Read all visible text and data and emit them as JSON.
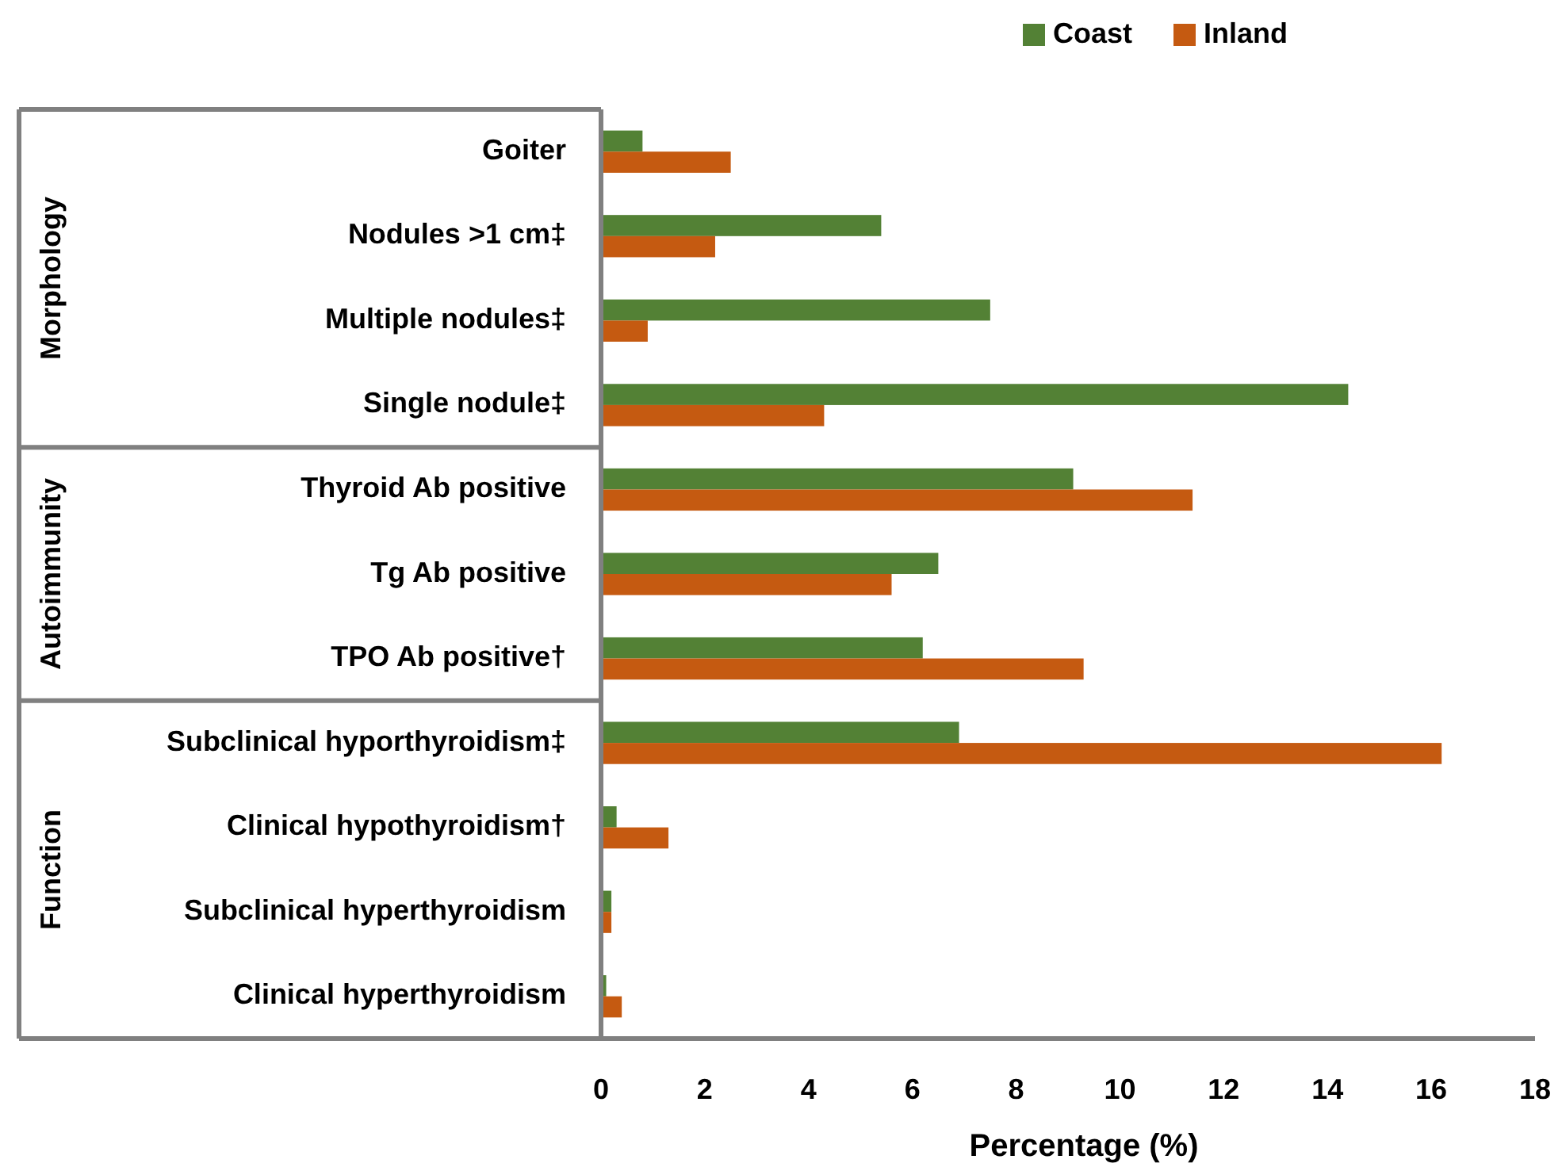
{
  "chart_data": {
    "type": "bar",
    "orientation": "horizontal",
    "xlabel": "Percentage (%)",
    "categories": [
      "Goiter",
      "Nodules >1 cm‡",
      "Multiple nodules‡",
      "Single nodule‡",
      "Thyroid Ab positive",
      "Tg Ab positive",
      "TPO Ab positive†",
      "Subclinical hyporthyroidism‡",
      "Clinical hypothyroidism†",
      "Subclinical hyperthyroidism",
      "Clinical hyperthyroidism"
    ],
    "series": [
      {
        "name": "Coast",
        "color": "#538135",
        "values": [
          0.8,
          5.4,
          7.5,
          14.4,
          9.1,
          6.5,
          6.2,
          6.9,
          0.3,
          0.2,
          0.1
        ]
      },
      {
        "name": "Inland",
        "color": "#c55a11",
        "values": [
          2.5,
          2.2,
          0.9,
          4.3,
          11.4,
          5.6,
          9.3,
          16.2,
          1.3,
          0.2,
          0.4
        ]
      }
    ],
    "xlim": [
      0,
      18
    ],
    "xticks": [
      0,
      2,
      4,
      6,
      8,
      10,
      12,
      14,
      16,
      18
    ],
    "grid": false,
    "legend": "top right",
    "annotations": [
      "Morphology",
      "Autoimmunity",
      "Function"
    ]
  }
}
